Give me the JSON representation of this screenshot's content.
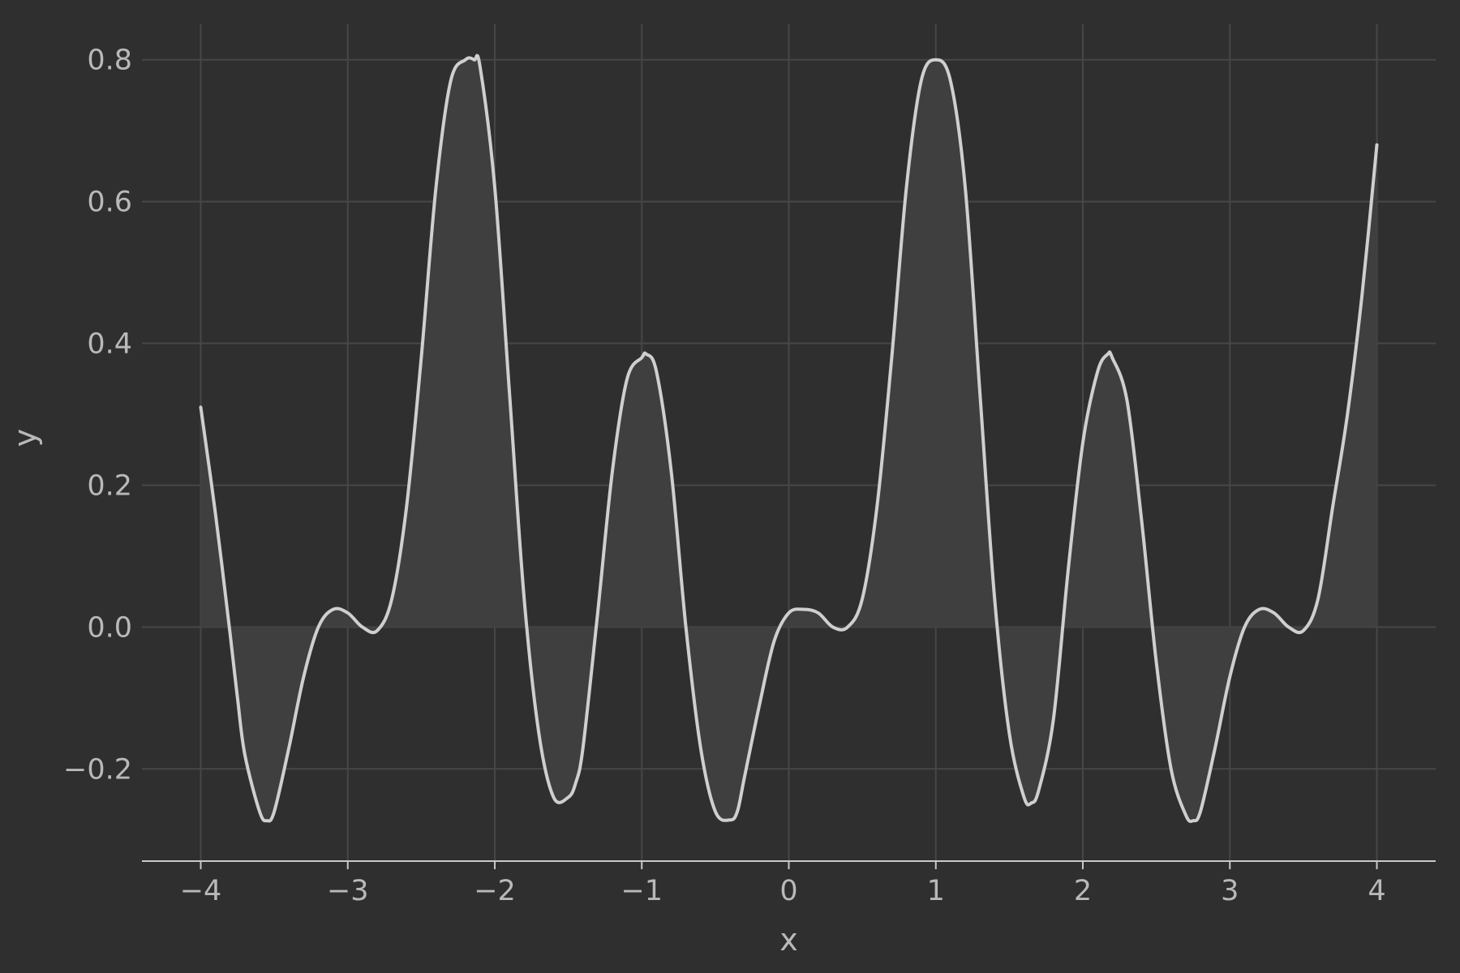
{
  "colors": {
    "background": "#2f2f2f",
    "grid": "#474747",
    "axis_line": "#c8c8c8",
    "line": "#cfcfcf",
    "fill": "#3f3f3f",
    "text": "#b9b9b9"
  },
  "chart_data": {
    "type": "area",
    "xlabel": "x",
    "ylabel": "y",
    "xlim": [
      -4.4,
      4.4
    ],
    "ylim": [
      -0.33,
      0.85
    ],
    "grid": true,
    "legend": "none",
    "xticks": [
      -4,
      -3,
      -2,
      -1,
      0,
      1,
      2,
      3,
      4
    ],
    "xtick_labels": [
      "−4",
      "−3",
      "−2",
      "−1",
      "0",
      "1",
      "2",
      "3",
      "4"
    ],
    "yticks": [
      -0.2,
      0.0,
      0.2,
      0.4,
      0.6,
      0.8
    ],
    "ytick_labels": [
      "−0.2",
      "0.0",
      "0.2",
      "0.4",
      "0.6",
      "0.8"
    ],
    "fill_baseline": 0.0,
    "series": [
      {
        "x": [
          -4.0,
          -3.9,
          -3.8,
          -3.75,
          -3.7,
          -3.6,
          -3.55,
          -3.5,
          -3.4,
          -3.3,
          -3.2,
          -3.1,
          -3.0,
          -2.9,
          -2.8,
          -2.7,
          -2.6,
          -2.5,
          -2.4,
          -2.3,
          -2.2,
          -2.14,
          -2.1,
          -2.0,
          -1.9,
          -1.8,
          -1.7,
          -1.6,
          -1.5,
          -1.45,
          -1.4,
          -1.3,
          -1.2,
          -1.1,
          -1.0,
          -0.97,
          -0.9,
          -0.8,
          -0.7,
          -0.6,
          -0.5,
          -0.4,
          -0.35,
          -0.3,
          -0.2,
          -0.1,
          0.0,
          0.1,
          0.2,
          0.3,
          0.4,
          0.5,
          0.6,
          0.7,
          0.8,
          0.9,
          1.0,
          1.1,
          1.2,
          1.3,
          1.4,
          1.5,
          1.6,
          1.65,
          1.7,
          1.8,
          1.9,
          2.0,
          2.1,
          2.17,
          2.2,
          2.3,
          2.4,
          2.5,
          2.6,
          2.7,
          2.75,
          2.8,
          2.9,
          3.0,
          3.1,
          3.2,
          3.3,
          3.4,
          3.5,
          3.6,
          3.7,
          3.8,
          3.9,
          4.0
        ],
        "y": [
          0.31,
          0.16,
          -0.01,
          -0.1,
          -0.18,
          -0.26,
          -0.273,
          -0.26,
          -0.17,
          -0.07,
          0.0,
          0.025,
          0.02,
          0.0,
          -0.005,
          0.04,
          0.17,
          0.38,
          0.62,
          0.77,
          0.8,
          0.8,
          0.79,
          0.62,
          0.33,
          0.04,
          -0.15,
          -0.24,
          -0.24,
          -0.22,
          -0.17,
          0.02,
          0.22,
          0.35,
          0.38,
          0.385,
          0.36,
          0.22,
          0.0,
          -0.17,
          -0.26,
          -0.272,
          -0.26,
          -0.21,
          -0.11,
          -0.02,
          0.02,
          0.025,
          0.02,
          0.0,
          0.0,
          0.04,
          0.17,
          0.38,
          0.62,
          0.77,
          0.8,
          0.77,
          0.62,
          0.33,
          0.04,
          -0.15,
          -0.24,
          -0.248,
          -0.23,
          -0.13,
          0.08,
          0.26,
          0.36,
          0.385,
          0.38,
          0.32,
          0.15,
          -0.05,
          -0.2,
          -0.265,
          -0.273,
          -0.26,
          -0.17,
          -0.07,
          0.0,
          0.025,
          0.02,
          0.0,
          -0.005,
          0.04,
          0.17,
          0.3,
          0.47,
          0.68
        ]
      }
    ]
  }
}
